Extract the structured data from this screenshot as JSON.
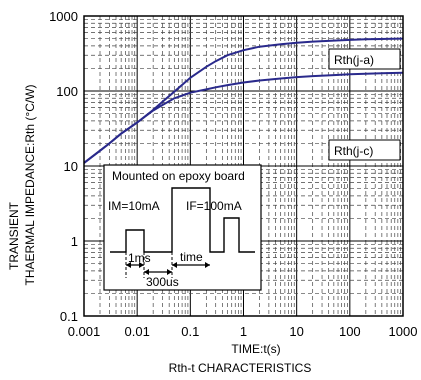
{
  "chart_data": {
    "type": "line",
    "x_scale": "log",
    "y_scale": "log",
    "xlim": [
      0.001,
      1000
    ],
    "ylim": [
      0.1,
      1000
    ],
    "x_ticks": [
      "0.001",
      "0.01",
      "0.1",
      "1",
      "10",
      "100",
      "1000"
    ],
    "y_ticks": [
      "0.1",
      "1",
      "10",
      "100",
      "1000"
    ],
    "xlabel": "TIME:t(s)",
    "ylabel_line1": "TRANSIENT",
    "ylabel_line2": "THAERMAL IMPEDANCE:Rth (°C/W)",
    "caption": "Rth-t CHARACTERISTICS",
    "grid": true,
    "line_color": "#2a2a8c",
    "series": [
      {
        "name": "Rth(j-a)",
        "x": [
          0.001,
          0.002,
          0.003,
          0.005,
          0.01,
          0.02,
          0.03,
          0.05,
          0.1,
          0.2,
          0.3,
          0.5,
          1,
          2,
          5,
          10,
          20,
          50,
          100,
          200,
          500,
          1000
        ],
        "y": [
          11,
          16,
          20,
          27,
          38,
          56,
          72,
          98,
          150,
          210,
          250,
          300,
          350,
          390,
          420,
          440,
          455,
          470,
          480,
          490,
          495,
          500
        ]
      },
      {
        "name": "Rth(j-c)",
        "x": [
          0.001,
          0.002,
          0.003,
          0.005,
          0.01,
          0.02,
          0.03,
          0.05,
          0.1,
          0.2,
          0.3,
          0.5,
          1,
          2,
          5,
          10,
          20,
          50,
          100,
          200,
          500,
          1000
        ],
        "y": [
          11,
          16,
          20,
          27,
          38,
          55,
          65,
          80,
          95,
          105,
          112,
          120,
          130,
          138,
          147,
          153,
          158,
          163,
          167,
          170,
          173,
          175
        ]
      }
    ],
    "legend": [
      "Rth(j-a)",
      "Rth(j-c)"
    ],
    "inset": {
      "title": "Mounted on epoxy board",
      "label_im": "IM=10mA",
      "label_if": "IF=100mA",
      "label_1ms": "1ms",
      "label_time": "time",
      "label_300us": "300us"
    }
  }
}
